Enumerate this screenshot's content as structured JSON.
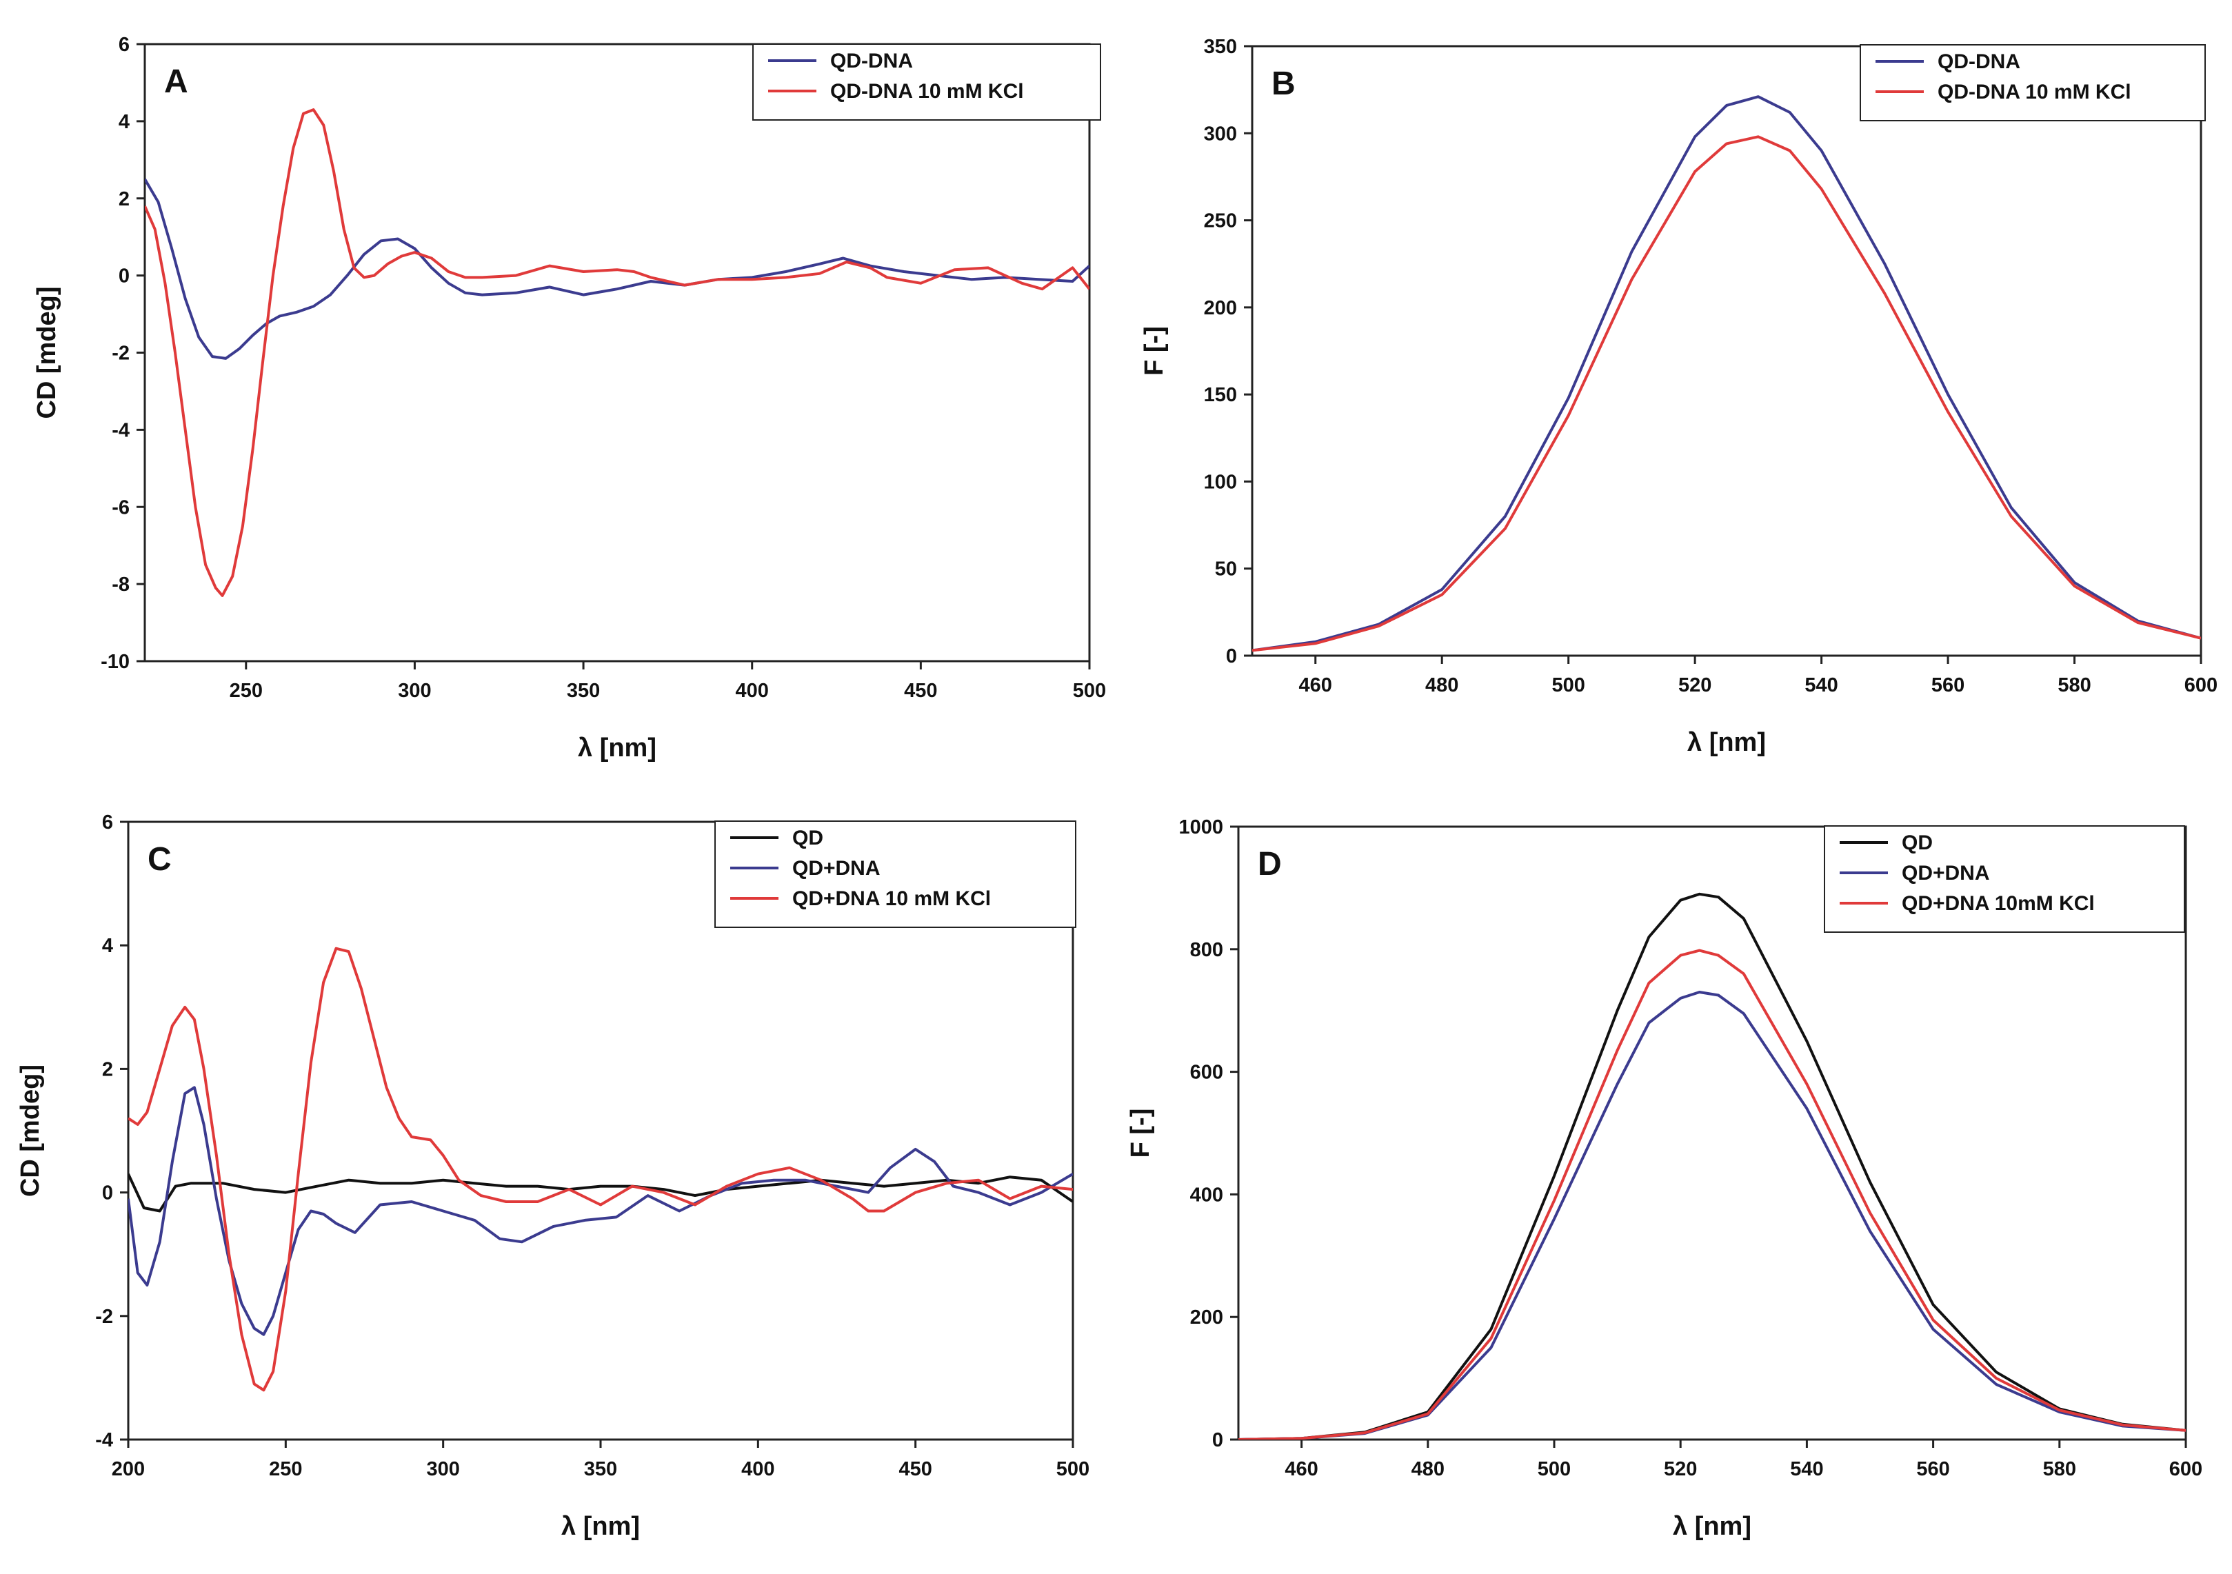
{
  "chart_data": [
    {
      "panel": "A",
      "type": "line",
      "xlabel": "λ [nm]",
      "ylabel": "CD [mdeg]",
      "xlim": [
        220,
        500
      ],
      "ylim": [
        -10,
        6
      ],
      "xticks": [
        250,
        300,
        350,
        400,
        450,
        500
      ],
      "yticks": [
        -10,
        -8,
        -6,
        -4,
        -2,
        0,
        2,
        4,
        6
      ],
      "legend_position": "top-right",
      "series": [
        {
          "name": "QD-DNA",
          "color": "#3b3b8f",
          "x": [
            220,
            224,
            228,
            232,
            236,
            240,
            244,
            248,
            252,
            256,
            260,
            265,
            270,
            275,
            280,
            285,
            290,
            295,
            300,
            305,
            310,
            315,
            320,
            330,
            340,
            350,
            360,
            370,
            380,
            390,
            400,
            410,
            420,
            427,
            435,
            445,
            455,
            465,
            475,
            485,
            495,
            500
          ],
          "y": [
            2.5,
            1.9,
            0.7,
            -0.6,
            -1.6,
            -2.1,
            -2.15,
            -1.9,
            -1.55,
            -1.25,
            -1.05,
            -0.95,
            -0.8,
            -0.5,
            0.0,
            0.55,
            0.9,
            0.95,
            0.7,
            0.2,
            -0.2,
            -0.45,
            -0.5,
            -0.45,
            -0.3,
            -0.5,
            -0.35,
            -0.15,
            -0.25,
            -0.1,
            -0.05,
            0.1,
            0.3,
            0.45,
            0.25,
            0.1,
            0.0,
            -0.1,
            -0.05,
            -0.1,
            -0.15,
            0.25
          ]
        },
        {
          "name": "QD-DNA 10 mM KCl",
          "color": "#e03a3a",
          "x": [
            220,
            223,
            226,
            229,
            232,
            235,
            238,
            241,
            243,
            246,
            249,
            252,
            255,
            258,
            261,
            264,
            267,
            270,
            273,
            276,
            279,
            282,
            285,
            288,
            292,
            296,
            300,
            305,
            310,
            315,
            320,
            330,
            340,
            350,
            360,
            365,
            370,
            380,
            390,
            400,
            410,
            420,
            428,
            435,
            440,
            450,
            460,
            470,
            480,
            486,
            495,
            500
          ],
          "y": [
            1.8,
            1.2,
            -0.2,
            -2.0,
            -4.0,
            -6.0,
            -7.5,
            -8.1,
            -8.3,
            -7.8,
            -6.5,
            -4.5,
            -2.2,
            0.0,
            1.8,
            3.3,
            4.2,
            4.3,
            3.9,
            2.7,
            1.2,
            0.2,
            -0.05,
            0.0,
            0.3,
            0.5,
            0.6,
            0.45,
            0.1,
            -0.05,
            -0.05,
            0.0,
            0.25,
            0.1,
            0.15,
            0.1,
            -0.05,
            -0.25,
            -0.1,
            -0.1,
            -0.05,
            0.05,
            0.35,
            0.2,
            -0.05,
            -0.2,
            0.15,
            0.2,
            -0.2,
            -0.35,
            0.2,
            -0.35
          ]
        }
      ]
    },
    {
      "panel": "B",
      "type": "line",
      "xlabel": "λ [nm]",
      "ylabel": "F [-]",
      "xlim": [
        450,
        600
      ],
      "ylim": [
        0,
        350
      ],
      "xticks": [
        460,
        480,
        500,
        520,
        540,
        560,
        580,
        600
      ],
      "yticks": [
        0,
        50,
        100,
        150,
        200,
        250,
        300,
        350
      ],
      "legend_position": "top-right",
      "series": [
        {
          "name": "QD-DNA",
          "color": "#3b3b8f",
          "x": [
            450,
            460,
            470,
            480,
            490,
            500,
            510,
            520,
            525,
            530,
            535,
            540,
            550,
            560,
            570,
            580,
            590,
            600
          ],
          "y": [
            3,
            8,
            18,
            38,
            80,
            148,
            232,
            298,
            316,
            321,
            312,
            290,
            225,
            150,
            85,
            42,
            20,
            10
          ]
        },
        {
          "name": "QD-DNA 10 mM KCl",
          "color": "#e03a3a",
          "x": [
            450,
            460,
            470,
            480,
            490,
            500,
            510,
            520,
            525,
            530,
            535,
            540,
            550,
            560,
            570,
            580,
            590,
            600
          ],
          "y": [
            3,
            7,
            17,
            35,
            73,
            138,
            216,
            278,
            294,
            298,
            290,
            268,
            208,
            140,
            80,
            40,
            19,
            10
          ]
        }
      ]
    },
    {
      "panel": "C",
      "type": "line",
      "xlabel": "λ [nm]",
      "ylabel": "CD [mdeg]",
      "xlim": [
        200,
        500
      ],
      "ylim": [
        -4,
        6
      ],
      "xticks": [
        200,
        250,
        300,
        350,
        400,
        450,
        500
      ],
      "yticks": [
        -4,
        -2,
        0,
        2,
        4,
        6
      ],
      "legend_position": "top-right",
      "series": [
        {
          "name": "QD",
          "color": "#111111",
          "x": [
            200,
            205,
            210,
            215,
            220,
            230,
            240,
            250,
            260,
            270,
            280,
            290,
            300,
            310,
            320,
            330,
            340,
            350,
            360,
            370,
            380,
            390,
            400,
            410,
            420,
            430,
            440,
            450,
            460,
            470,
            480,
            490,
            500
          ],
          "y": [
            0.3,
            -0.25,
            -0.3,
            0.1,
            0.15,
            0.15,
            0.05,
            0.0,
            0.1,
            0.2,
            0.15,
            0.15,
            0.2,
            0.15,
            0.1,
            0.1,
            0.05,
            0.1,
            0.1,
            0.05,
            -0.05,
            0.05,
            0.1,
            0.15,
            0.2,
            0.15,
            0.1,
            0.15,
            0.2,
            0.15,
            0.25,
            0.2,
            -0.15
          ]
        },
        {
          "name": "QD+DNA",
          "color": "#3b3b8f",
          "x": [
            200,
            203,
            206,
            210,
            214,
            218,
            221,
            224,
            228,
            232,
            236,
            240,
            243,
            246,
            250,
            254,
            258,
            262,
            266,
            272,
            280,
            290,
            300,
            310,
            318,
            325,
            335,
            345,
            355,
            365,
            375,
            385,
            395,
            405,
            415,
            425,
            435,
            442,
            450,
            456,
            462,
            470,
            480,
            490,
            500
          ],
          "y": [
            -0.1,
            -1.3,
            -1.5,
            -0.8,
            0.5,
            1.6,
            1.7,
            1.1,
            -0.1,
            -1.1,
            -1.8,
            -2.2,
            -2.3,
            -2.0,
            -1.3,
            -0.6,
            -0.3,
            -0.35,
            -0.5,
            -0.65,
            -0.2,
            -0.15,
            -0.3,
            -0.45,
            -0.75,
            -0.8,
            -0.55,
            -0.45,
            -0.4,
            -0.05,
            -0.3,
            -0.05,
            0.15,
            0.2,
            0.2,
            0.1,
            0.0,
            0.4,
            0.7,
            0.5,
            0.1,
            0.0,
            -0.2,
            0.0,
            0.3
          ]
        },
        {
          "name": "QD+DNA 10 mM KCl",
          "color": "#e03a3a",
          "x": [
            200,
            203,
            206,
            210,
            214,
            218,
            221,
            224,
            228,
            232,
            236,
            240,
            243,
            246,
            250,
            254,
            258,
            262,
            266,
            270,
            274,
            278,
            282,
            286,
            290,
            296,
            300,
            305,
            312,
            320,
            330,
            340,
            350,
            360,
            370,
            380,
            390,
            400,
            410,
            420,
            430,
            435,
            440,
            450,
            460,
            470,
            480,
            490,
            500
          ],
          "y": [
            1.2,
            1.1,
            1.3,
            2.0,
            2.7,
            3.0,
            2.8,
            2.0,
            0.6,
            -1.0,
            -2.3,
            -3.1,
            -3.2,
            -2.9,
            -1.6,
            0.3,
            2.1,
            3.4,
            3.95,
            3.9,
            3.3,
            2.5,
            1.7,
            1.2,
            0.9,
            0.85,
            0.6,
            0.2,
            -0.05,
            -0.15,
            -0.15,
            0.05,
            -0.2,
            0.1,
            0.0,
            -0.2,
            0.1,
            0.3,
            0.4,
            0.2,
            -0.1,
            -0.3,
            -0.3,
            0.0,
            0.15,
            0.2,
            -0.1,
            0.1,
            0.05
          ]
        }
      ]
    },
    {
      "panel": "D",
      "type": "line",
      "xlabel": "λ [nm]",
      "ylabel": "F [-]",
      "xlim": [
        450,
        600
      ],
      "ylim": [
        0,
        1000
      ],
      "xticks": [
        460,
        480,
        500,
        520,
        540,
        560,
        580,
        600
      ],
      "yticks": [
        0,
        200,
        400,
        600,
        800,
        1000
      ],
      "legend_position": "top-right",
      "series": [
        {
          "name": "QD",
          "color": "#111111",
          "x": [
            450,
            460,
            470,
            480,
            490,
            500,
            510,
            515,
            520,
            523,
            526,
            530,
            540,
            550,
            560,
            570,
            580,
            590,
            600
          ],
          "y": [
            0,
            2,
            12,
            45,
            180,
            430,
            700,
            820,
            880,
            890,
            885,
            850,
            650,
            420,
            220,
            110,
            50,
            25,
            15
          ]
        },
        {
          "name": "QD+DNA",
          "color": "#3b3b8f",
          "x": [
            450,
            460,
            470,
            480,
            490,
            500,
            510,
            515,
            520,
            523,
            526,
            530,
            540,
            550,
            560,
            570,
            580,
            590,
            600
          ],
          "y": [
            0,
            2,
            10,
            40,
            150,
            360,
            580,
            680,
            720,
            730,
            725,
            695,
            540,
            340,
            180,
            90,
            45,
            22,
            15
          ]
        },
        {
          "name": "QD+DNA 10 mM KCl",
          "color": "#e03a3a",
          "x": [
            450,
            460,
            470,
            480,
            490,
            500,
            510,
            515,
            520,
            523,
            526,
            530,
            540,
            550,
            560,
            570,
            580,
            590,
            600
          ],
          "y": [
            0,
            2,
            11,
            42,
            165,
            390,
            635,
            745,
            790,
            798,
            790,
            760,
            580,
            370,
            195,
            100,
            48,
            24,
            15
          ]
        }
      ]
    }
  ],
  "legends": {
    "A": [
      "QD-DNA",
      "QD-DNA 10 mM KCl"
    ],
    "B": [
      "QD-DNA",
      "QD-DNA 10 mM KCl"
    ],
    "C": [
      "QD",
      "QD+DNA",
      "QD+DNA 10 mM KCl"
    ],
    "D": [
      "QD",
      "QD+DNA",
      "QD+DNA 10mM KCl"
    ]
  }
}
